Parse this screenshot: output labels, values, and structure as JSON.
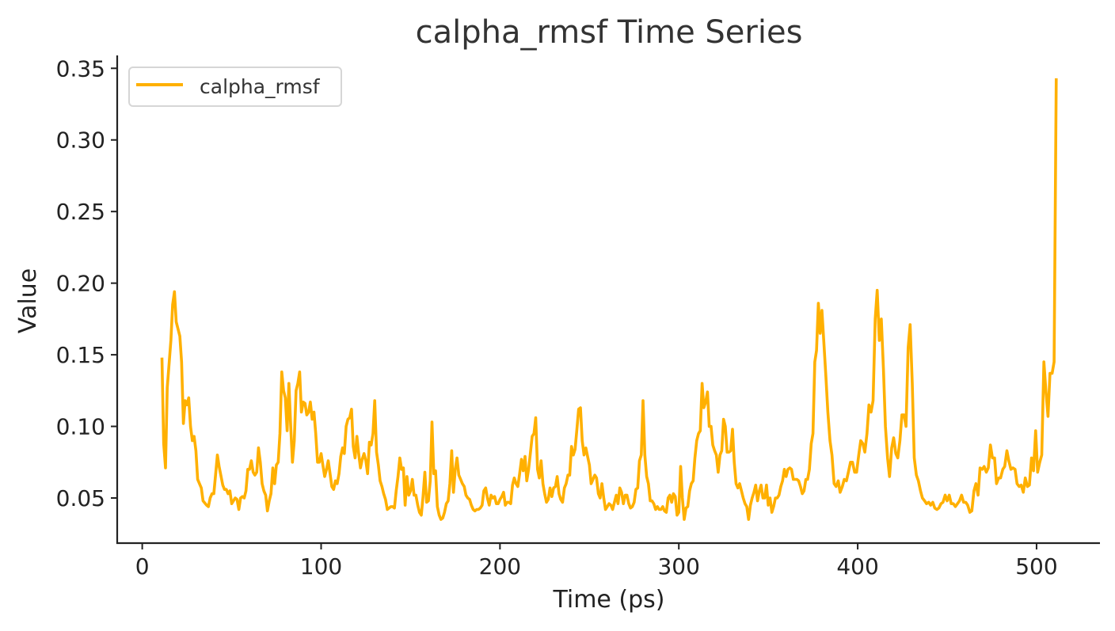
{
  "chart_data": {
    "type": "line",
    "title": "calpha_rmsf Time Series",
    "xlabel": "Time (ps)",
    "ylabel": "Value",
    "xlim": [
      -14,
      535
    ],
    "ylim": [
      0.0185,
      0.359
    ],
    "xticks": [
      0,
      100,
      200,
      300,
      400,
      500
    ],
    "yticks": [
      0.05,
      0.1,
      0.15,
      0.2,
      0.25,
      0.3,
      0.35
    ],
    "ytick_labels": [
      "0.05",
      "0.10",
      "0.15",
      "0.20",
      "0.25",
      "0.30",
      "0.35"
    ],
    "grid": false,
    "legend_placement": "top-left",
    "series": [
      {
        "name": "calpha_rmsf",
        "color": "#FFB000",
        "x": [
          11,
          12,
          13,
          14,
          16,
          17,
          18,
          19,
          21,
          22,
          23,
          24,
          25,
          26,
          27,
          28,
          29,
          30,
          31,
          32,
          33,
          34,
          36,
          37,
          38,
          39,
          40,
          41,
          42,
          43,
          45,
          46,
          47,
          48,
          49,
          50,
          51,
          52,
          53,
          54,
          55,
          56,
          57,
          58,
          59,
          60,
          61,
          62,
          63,
          64,
          65,
          66,
          67,
          68,
          69,
          70,
          71,
          72,
          73,
          74,
          75,
          76,
          77,
          78,
          79,
          80,
          81,
          82,
          83,
          84,
          85,
          86,
          87,
          88,
          89,
          90,
          91,
          92,
          93,
          94,
          95,
          96,
          97,
          98,
          99,
          100,
          101,
          102,
          103,
          104,
          105,
          106,
          107,
          108,
          109,
          110,
          111,
          112,
          113,
          114,
          115,
          116,
          117,
          118,
          119,
          120,
          121,
          122,
          123,
          124,
          125,
          126,
          127,
          128,
          129,
          130,
          131,
          132,
          133,
          134,
          135,
          136,
          137,
          138,
          139,
          140,
          141,
          142,
          143,
          144,
          145,
          146,
          147,
          148,
          149,
          150,
          151,
          152,
          153,
          154,
          155,
          156,
          157,
          158,
          159,
          160,
          161,
          162,
          163,
          164,
          165,
          166,
          167,
          168,
          169,
          170,
          171,
          172,
          173,
          174,
          175,
          176,
          177,
          178,
          179,
          180,
          181,
          182,
          183,
          184,
          185,
          186,
          187,
          188,
          189,
          190,
          191,
          192,
          193,
          194,
          195,
          196,
          197,
          198,
          199,
          200,
          201,
          202,
          203,
          204,
          205,
          206,
          207,
          208,
          209,
          210,
          211,
          212,
          213,
          214,
          215,
          216,
          217,
          218,
          219,
          220,
          221,
          222,
          223,
          224,
          225,
          226,
          227,
          228,
          229,
          230,
          231,
          232,
          233,
          234,
          235,
          236,
          237,
          238,
          239,
          240,
          241,
          242,
          243,
          244,
          245,
          246,
          247,
          248,
          249,
          250,
          251,
          252,
          253,
          254,
          255,
          256,
          257,
          258,
          259,
          260,
          261,
          262,
          263,
          264,
          265,
          266,
          267,
          268,
          269,
          270,
          271,
          272,
          273,
          274,
          275,
          276,
          277,
          278,
          279,
          280,
          281,
          282,
          283,
          284,
          285,
          286,
          287,
          288,
          289,
          290,
          291,
          292,
          293,
          294,
          295,
          296,
          297,
          298,
          299,
          300,
          301,
          302,
          303,
          304,
          305,
          306,
          307,
          308,
          309,
          310,
          311,
          312,
          313,
          314,
          315,
          316,
          317,
          318,
          319,
          320,
          321,
          322,
          323,
          324,
          325,
          326,
          327,
          328,
          329,
          330,
          331,
          332,
          333,
          334,
          335,
          336,
          337,
          338,
          339,
          340,
          341,
          342,
          343,
          344,
          345,
          346,
          347,
          348,
          349,
          350,
          351,
          352,
          353,
          354,
          355,
          356,
          357,
          358,
          359,
          360,
          361,
          362,
          363,
          364,
          365,
          366,
          367,
          368,
          369,
          370,
          371,
          372,
          373,
          374,
          375,
          376,
          377,
          378,
          379,
          380,
          381,
          382.2,
          383.3,
          384.5,
          385.6,
          386.8,
          387.9,
          389.1,
          390.2,
          391.4,
          392.5,
          393.7,
          394.8,
          396,
          397.1,
          398.3,
          399.4,
          400.6,
          401.7,
          402.9,
          404,
          405.2,
          406.3,
          407.5,
          408.6,
          409.8,
          410.9,
          412.1,
          413.2,
          414.4,
          415.5,
          416.7,
          417.8,
          419,
          420.1,
          421.3,
          422.4,
          423.6,
          424.7,
          425.9,
          427,
          428.2,
          429.3,
          430.5,
          431.6,
          432.8,
          433.9,
          435.1,
          436.2,
          437.4,
          438.5,
          439.7,
          440.8,
          442,
          443.1,
          444.3,
          445.4,
          446.6,
          447.7,
          448.9,
          450,
          451.2,
          452.3,
          453.5,
          454.6,
          455.8,
          456.9,
          458.1,
          459.2,
          460.4,
          461.5,
          462.7,
          463.8,
          465,
          466.1,
          467.3,
          468.4,
          469.6,
          470.7,
          471.9,
          473,
          474.2,
          475.3,
          476.5,
          477.6,
          478.8,
          479.9,
          481.1,
          482.2,
          483.4,
          484.5,
          485.7,
          486.8,
          488,
          489.1,
          490.3,
          491.4,
          492.6,
          493.7,
          494.9,
          496,
          497.2,
          498.3,
          499.5,
          500.6,
          501.8,
          502.9,
          504.1,
          505.2,
          506.4,
          507.5,
          508.7,
          509.8,
          511
        ],
        "y": [
          0.148,
          0.088,
          0.071,
          0.127,
          0.16,
          0.185,
          0.194,
          0.173,
          0.163,
          0.145,
          0.102,
          0.118,
          0.115,
          0.12,
          0.1,
          0.09,
          0.093,
          0.083,
          0.063,
          0.06,
          0.057,
          0.048,
          0.045,
          0.044,
          0.05,
          0.053,
          0.053,
          0.066,
          0.08,
          0.072,
          0.059,
          0.056,
          0.056,
          0.053,
          0.055,
          0.046,
          0.048,
          0.05,
          0.049,
          0.042,
          0.05,
          0.051,
          0.05,
          0.055,
          0.07,
          0.07,
          0.076,
          0.068,
          0.066,
          0.068,
          0.085,
          0.075,
          0.06,
          0.055,
          0.052,
          0.041,
          0.048,
          0.053,
          0.071,
          0.06,
          0.073,
          0.075,
          0.095,
          0.138,
          0.125,
          0.12,
          0.097,
          0.13,
          0.1,
          0.075,
          0.09,
          0.125,
          0.13,
          0.138,
          0.11,
          0.117,
          0.116,
          0.108,
          0.11,
          0.117,
          0.105,
          0.11,
          0.095,
          0.075,
          0.075,
          0.081,
          0.073,
          0.065,
          0.07,
          0.076,
          0.067,
          0.058,
          0.056,
          0.062,
          0.06,
          0.067,
          0.079,
          0.085,
          0.081,
          0.1,
          0.105,
          0.106,
          0.112,
          0.086,
          0.078,
          0.093,
          0.081,
          0.071,
          0.077,
          0.081,
          0.076,
          0.067,
          0.089,
          0.087,
          0.095,
          0.118,
          0.082,
          0.073,
          0.062,
          0.058,
          0.053,
          0.049,
          0.042,
          0.043,
          0.044,
          0.044,
          0.043,
          0.055,
          0.065,
          0.078,
          0.07,
          0.071,
          0.045,
          0.065,
          0.052,
          0.055,
          0.063,
          0.052,
          0.052,
          0.045,
          0.04,
          0.038,
          0.051,
          0.068,
          0.047,
          0.048,
          0.062,
          0.103,
          0.067,
          0.069,
          0.044,
          0.038,
          0.035,
          0.036,
          0.04,
          0.046,
          0.048,
          0.06,
          0.083,
          0.054,
          0.07,
          0.078,
          0.066,
          0.063,
          0.06,
          0.058,
          0.052,
          0.05,
          0.049,
          0.045,
          0.042,
          0.041,
          0.042,
          0.042,
          0.043,
          0.045,
          0.055,
          0.057,
          0.05,
          0.045,
          0.052,
          0.05,
          0.051,
          0.046,
          0.046,
          0.049,
          0.051,
          0.054,
          0.045,
          0.047,
          0.047,
          0.046,
          0.059,
          0.064,
          0.06,
          0.058,
          0.067,
          0.077,
          0.069,
          0.079,
          0.062,
          0.07,
          0.081,
          0.093,
          0.095,
          0.106,
          0.07,
          0.064,
          0.076,
          0.06,
          0.053,
          0.047,
          0.049,
          0.057,
          0.051,
          0.057,
          0.058,
          0.065,
          0.053,
          0.049,
          0.047,
          0.057,
          0.06,
          0.066,
          0.066,
          0.086,
          0.08,
          0.084,
          0.098,
          0.112,
          0.113,
          0.09,
          0.08,
          0.085,
          0.079,
          0.073,
          0.06,
          0.063,
          0.066,
          0.064,
          0.053,
          0.05,
          0.06,
          0.05,
          0.042,
          0.044,
          0.046,
          0.045,
          0.042,
          0.047,
          0.052,
          0.046,
          0.057,
          0.054,
          0.046,
          0.052,
          0.052,
          0.046,
          0.043,
          0.044,
          0.047,
          0.056,
          0.057,
          0.076,
          0.08,
          0.118,
          0.08,
          0.065,
          0.06,
          0.048,
          0.048,
          0.046,
          0.042,
          0.044,
          0.042,
          0.042,
          0.044,
          0.041,
          0.04,
          0.05,
          0.052,
          0.047,
          0.053,
          0.051,
          0.038,
          0.04,
          0.072,
          0.05,
          0.035,
          0.043,
          0.044,
          0.055,
          0.06,
          0.062,
          0.078,
          0.09,
          0.095,
          0.097,
          0.13,
          0.113,
          0.117,
          0.124,
          0.1,
          0.1,
          0.087,
          0.083,
          0.08,
          0.068,
          0.08,
          0.083,
          0.105,
          0.1,
          0.082,
          0.082,
          0.083,
          0.098,
          0.075,
          0.06,
          0.057,
          0.06,
          0.055,
          0.05,
          0.046,
          0.044,
          0.035,
          0.045,
          0.05,
          0.054,
          0.059,
          0.048,
          0.055,
          0.059,
          0.05,
          0.05,
          0.059,
          0.045,
          0.05,
          0.04,
          0.044,
          0.05,
          0.05,
          0.052,
          0.058,
          0.062,
          0.07,
          0.065,
          0.07,
          0.071,
          0.07,
          0.063,
          0.063,
          0.063,
          0.062,
          0.058,
          0.053,
          0.055,
          0.063,
          0.063,
          0.07,
          0.088,
          0.095,
          0.145,
          0.153,
          0.186,
          0.165,
          0.181,
          0.16,
          0.135,
          0.11,
          0.09,
          0.08,
          0.06,
          0.058,
          0.062,
          0.054,
          0.058,
          0.063,
          0.062,
          0.068,
          0.075,
          0.075,
          0.068,
          0.068,
          0.08,
          0.09,
          0.088,
          0.082,
          0.095,
          0.115,
          0.11,
          0.118,
          0.175,
          0.195,
          0.16,
          0.175,
          0.14,
          0.1,
          0.078,
          0.065,
          0.085,
          0.092,
          0.081,
          0.078,
          0.09,
          0.108,
          0.108,
          0.1,
          0.155,
          0.171,
          0.13,
          0.078,
          0.066,
          0.062,
          0.055,
          0.05,
          0.048,
          0.046,
          0.047,
          0.045,
          0.047,
          0.043,
          0.042,
          0.043,
          0.046,
          0.047,
          0.052,
          0.048,
          0.052,
          0.046,
          0.046,
          0.044,
          0.046,
          0.048,
          0.052,
          0.047,
          0.047,
          0.045,
          0.04,
          0.041,
          0.055,
          0.06,
          0.052,
          0.071,
          0.07,
          0.072,
          0.068,
          0.071,
          0.087,
          0.078,
          0.078,
          0.06,
          0.064,
          0.064,
          0.07,
          0.072,
          0.083,
          0.076,
          0.07,
          0.071,
          0.07,
          0.06,
          0.058,
          0.059,
          0.054,
          0.064,
          0.058,
          0.059,
          0.078,
          0.069,
          0.097,
          0.068,
          0.075,
          0.08,
          0.145,
          0.125,
          0.107,
          0.137,
          0.137,
          0.145,
          0.343
        ]
      }
    ]
  }
}
